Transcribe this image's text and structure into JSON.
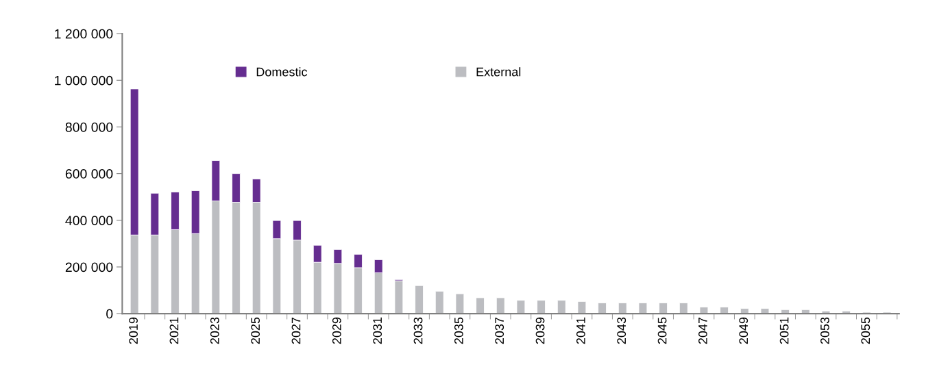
{
  "chart_data": {
    "type": "bar",
    "stacked": true,
    "categories": [
      "2019",
      null,
      "2021",
      null,
      "2023",
      null,
      "2025",
      null,
      "2027",
      null,
      "2029",
      null,
      "2031",
      null,
      "2033",
      null,
      "2035",
      null,
      "2037",
      null,
      "2039",
      null,
      "2041",
      null,
      "2043",
      null,
      "2045",
      null,
      "2047",
      null,
      "2049",
      null,
      "2051",
      null,
      "2053",
      null,
      "2055",
      null
    ],
    "series": [
      {
        "name": "External",
        "color": "#bcbdc1",
        "values": [
          337000,
          337000,
          360000,
          343000,
          483000,
          477000,
          477000,
          321000,
          315000,
          220000,
          215000,
          197000,
          175000,
          141000,
          120000,
          96000,
          85000,
          68000,
          68000,
          57000,
          57000,
          57000,
          52000,
          46000,
          46000,
          46000,
          46000,
          46000,
          28000,
          28000,
          22000,
          22000,
          17000,
          17000,
          11000,
          11000,
          6000,
          6000
        ]
      },
      {
        "name": "Domestic",
        "color": "#652d90",
        "values": [
          626000,
          179000,
          161000,
          184000,
          173000,
          123000,
          100000,
          78000,
          84000,
          73000,
          60000,
          57000,
          56000,
          5000,
          null,
          null,
          null,
          null,
          null,
          null,
          null,
          null,
          null,
          null,
          null,
          null,
          null,
          null,
          null,
          null,
          null,
          null,
          null,
          null,
          null,
          null,
          null,
          null
        ]
      }
    ],
    "ylim": [
      0,
      1200000
    ],
    "yticks": [
      0,
      {
        "value": 200000,
        "label": "200 000"
      },
      {
        "value": 400000,
        "label": "400 000"
      },
      {
        "value": 600000,
        "label": "600 000"
      },
      {
        "value": 800000,
        "label": "800 000"
      },
      {
        "value": 1000000,
        "label": "1 000 000"
      },
      {
        "value": 1200000,
        "label": "1 200 000"
      }
    ],
    "grid": false,
    "legend": "top"
  }
}
